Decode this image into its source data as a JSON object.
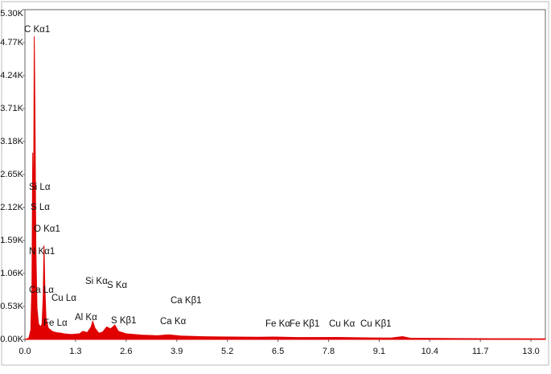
{
  "chart_data": {
    "type": "area",
    "color": "#e00000",
    "xlim": [
      0,
      13.37
    ],
    "ylim": [
      0,
      5300
    ],
    "xticks": [
      {
        "value": 0,
        "label": "0.0"
      },
      1.3,
      2.6,
      3.9,
      5.2,
      6.5,
      7.8,
      9.1,
      10.4,
      11.7,
      {
        "value": 13,
        "label": "13.0"
      }
    ],
    "yticks": [
      {
        "value": 0,
        "label": "0.00K"
      },
      {
        "value": 530,
        "label": "0.53K"
      },
      {
        "value": 1060,
        "label": "1.06K"
      },
      {
        "value": 1590,
        "label": "1.59K"
      },
      {
        "value": 2120,
        "label": "2.12K"
      },
      {
        "value": 2650,
        "label": "2.65K"
      },
      {
        "value": 3180,
        "label": "3.18K"
      },
      {
        "value": 3710,
        "label": "3.71K"
      },
      {
        "value": 4240,
        "label": "4.24K"
      },
      {
        "value": 4770,
        "label": "4.77K"
      },
      {
        "value": 5300,
        "label": "5.30K"
      }
    ],
    "x": [
      0,
      0.1,
      0.15,
      0.18,
      0.2,
      0.22,
      0.24,
      0.26,
      0.28,
      0.31,
      0.35,
      0.4,
      0.44,
      0.47,
      0.49,
      0.51,
      0.54,
      0.6,
      0.7,
      0.8,
      0.93,
      1.0,
      1.2,
      1.4,
      1.49,
      1.6,
      1.7,
      1.74,
      1.8,
      1.9,
      2.0,
      2.1,
      2.2,
      2.31,
      2.4,
      2.6,
      3.0,
      3.4,
      3.69,
      4.0,
      4.5,
      5.0,
      6.0,
      6.4,
      7.0,
      8.04,
      8.9,
      9.4,
      9.7,
      9.9,
      11.0,
      12.0,
      13.37
    ],
    "values": [
      0,
      20,
      150,
      900,
      3000,
      1800,
      4870,
      3500,
      1500,
      500,
      250,
      200,
      250,
      700,
      1510,
      900,
      350,
      180,
      130,
      110,
      100,
      90,
      80,
      90,
      130,
      110,
      200,
      290,
      180,
      100,
      120,
      200,
      170,
      230,
      130,
      90,
      70,
      60,
      75,
      55,
      45,
      40,
      35,
      38,
      30,
      32,
      25,
      22,
      45,
      20,
      15,
      12,
      10
    ],
    "annotations": [
      "C  Kα1",
      "Si  Lα",
      "S  Lα",
      "O  Kα1",
      "N  Kα1",
      "Ca Lα",
      "Cu Lα",
      "Fe Lα",
      "Si Kα",
      "S  Kα",
      "Al Kα",
      "S  Kβ1",
      "Ca Kβ1",
      "Ca Kα",
      "Fe Kα",
      "Fe Kβ1",
      "Cu Kα",
      "Cu Kβ1"
    ]
  }
}
